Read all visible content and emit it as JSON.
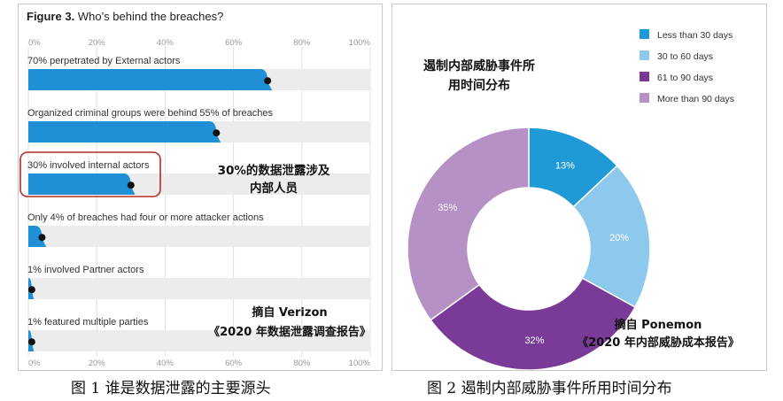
{
  "figure_left": {
    "title_bold": "Figure 3.",
    "title_rest": "Who’s behind the breaches?",
    "axis_ticks": [
      "0%",
      "20%",
      "40%",
      "60%",
      "80%",
      "100%"
    ],
    "highlight_note_line1": "30%的数据泄露涉及",
    "highlight_note_line2": "内部人员",
    "source_line1": "摘自 Verizon",
    "source_line2": "《2020 年数据泄露调查报告》",
    "caption": "图 1  谁是数据泄露的主要源头"
  },
  "figure_right": {
    "title_line1": "遏制内部威胁事件所",
    "title_line2": "用时间分布",
    "source_line1": "摘自 Ponemon",
    "source_line2": "《2020 年内部威胁成本报告》",
    "caption": "图 2  遏制内部威胁事件所用时间分布"
  },
  "chart_data": [
    {
      "type": "bar",
      "orientation": "horizontal",
      "title": "Who’s behind the breaches?",
      "xlim": [
        0,
        100
      ],
      "x_ticks": [
        "0%",
        "20%",
        "40%",
        "60%",
        "80%",
        "100%"
      ],
      "categories": [
        "70% perpetrated by External actors",
        "Organized criminal groups were behind 55% of breaches",
        "30% involved internal actors",
        "Only 4% of breaches had four or more attacker actions",
        "1% involved Partner actors",
        "1% featured multiple parties"
      ],
      "values": [
        70,
        55,
        30,
        4,
        1,
        1
      ],
      "highlighted_category_index": 2,
      "colors": {
        "bar": "#1f8fd6",
        "track": "#ececec",
        "highlight": "#b52a2a",
        "dot": "#111111"
      }
    },
    {
      "type": "pie",
      "donut": true,
      "legend_position": "top-right",
      "labels": [
        "Less than 30 days",
        "30 to 60 days",
        "61 to 90 days",
        "More than 90 days"
      ],
      "values": [
        13,
        20,
        32,
        35
      ],
      "value_labels": [
        "13%",
        "20%",
        "32%",
        "35%"
      ],
      "colors": [
        "#1f9ad6",
        "#8dc9ec",
        "#7a3a97",
        "#b591c6"
      ]
    }
  ]
}
